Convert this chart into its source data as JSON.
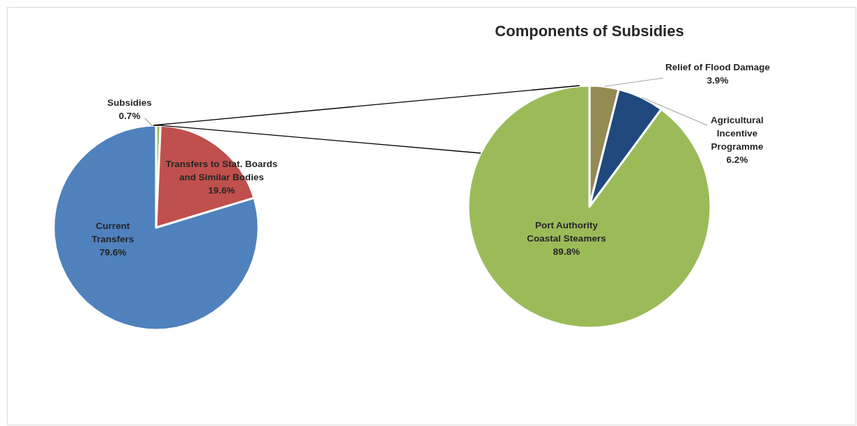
{
  "chart_data": [
    {
      "type": "pie",
      "categories": [
        "Subsidies",
        "Transfers to Stat. Boards\nand Similar Bodies",
        "Current\nTransfers"
      ],
      "values": [
        0.7,
        19.6,
        79.6
      ],
      "colors": [
        "#9bbb59",
        "#c0504d",
        "#4f81bd"
      ],
      "value_labels": [
        "0.7%",
        "19.6%",
        "79.6%"
      ]
    },
    {
      "type": "pie",
      "title": "Components of Subsidies",
      "categories": [
        "Relief of Flood Damage",
        "Agricultural\nIncentive\nProgramme",
        "Port Authority\nCoastal Steamers"
      ],
      "values": [
        3.9,
        6.2,
        89.8
      ],
      "colors": [
        "#948a54",
        "#1f497d",
        "#9bbb59"
      ],
      "value_labels": [
        "3.9%",
        "6.2%",
        "89.8%"
      ]
    }
  ]
}
